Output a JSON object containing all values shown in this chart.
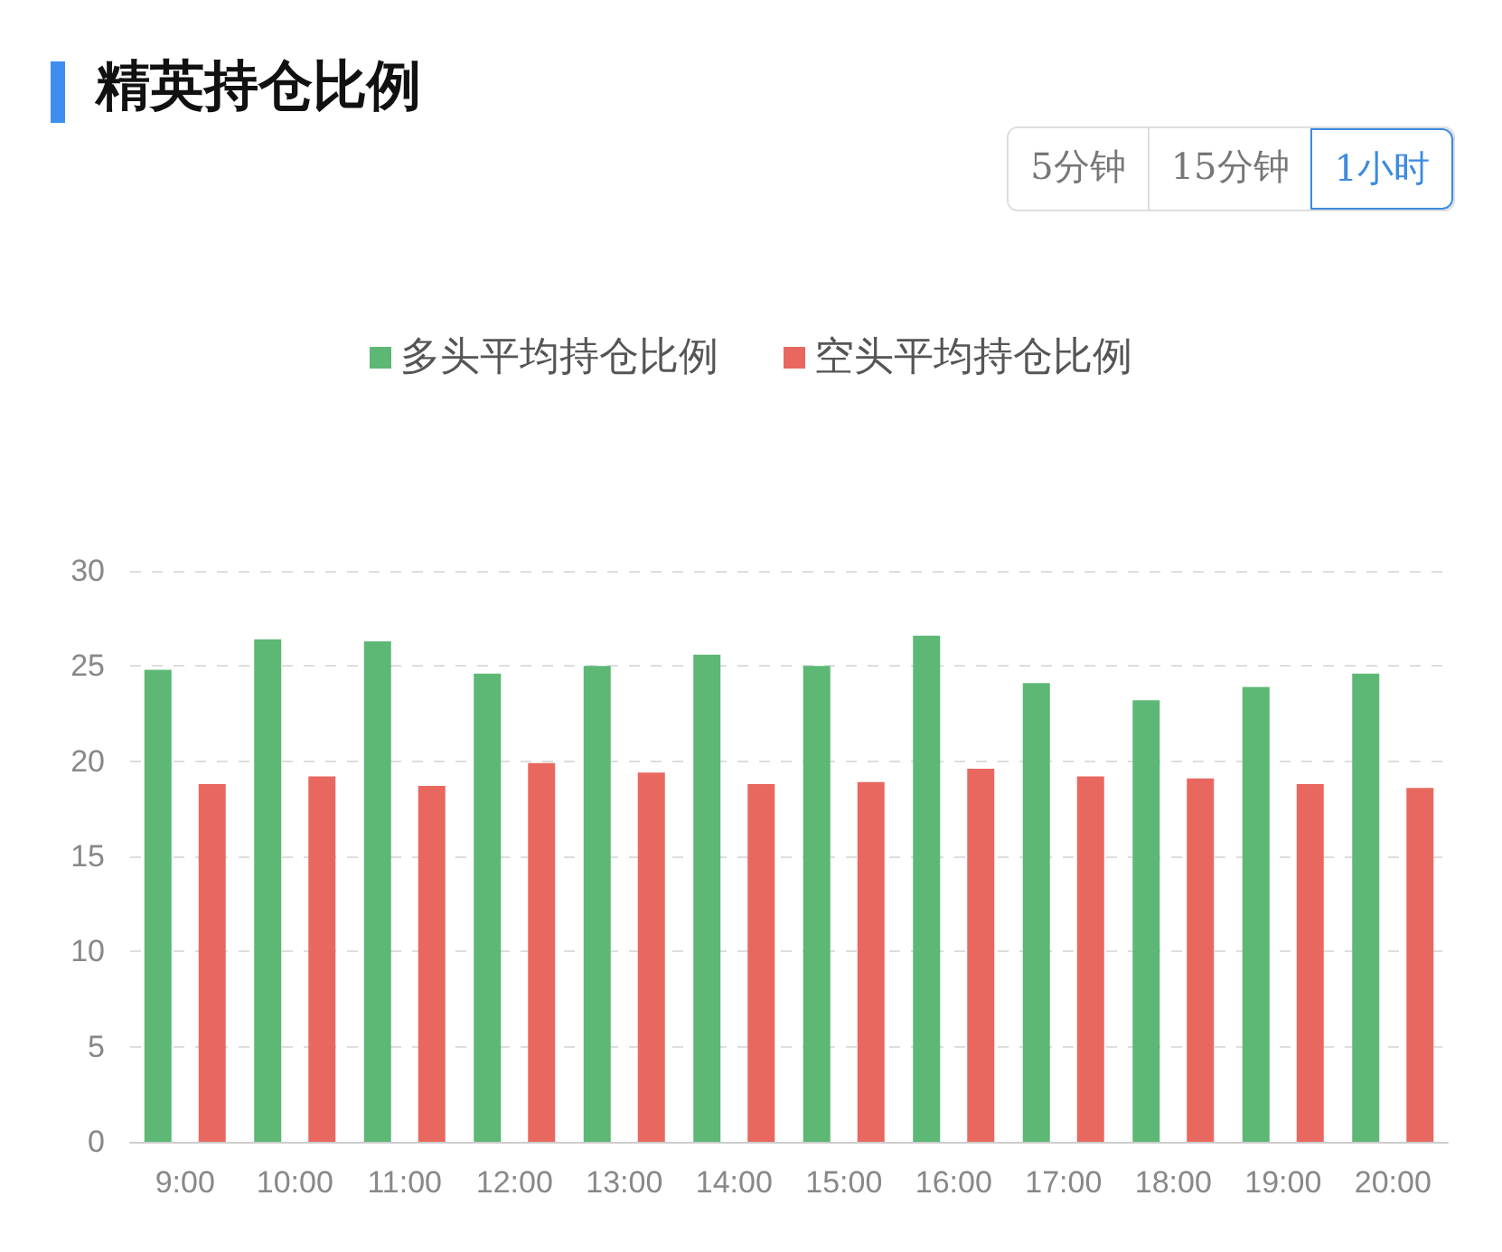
{
  "chart_data": {
    "type": "bar",
    "title": "精英持仓比例",
    "annotations": [
      "5分钟",
      "15分钟",
      "1小时"
    ],
    "categories": [
      "9:00",
      "10:00",
      "11:00",
      "12:00",
      "13:00",
      "14:00",
      "15:00",
      "16:00",
      "17:00",
      "18:00",
      "19:00",
      "20:00"
    ],
    "series": [
      {
        "name": "多头平均持仓比例",
        "color": "#5cb874",
        "values": [
          24.8,
          26.4,
          26.3,
          24.6,
          25.0,
          25.6,
          25.0,
          26.6,
          24.1,
          23.2,
          23.9,
          24.6
        ]
      },
      {
        "name": "空头平均持仓比例",
        "color": "#e8685f",
        "values": [
          18.8,
          19.2,
          18.7,
          19.9,
          19.4,
          18.8,
          18.9,
          19.6,
          19.2,
          19.1,
          18.8,
          18.6
        ]
      }
    ],
    "ylim": [
      0,
      30
    ],
    "yticks": [
      0,
      5,
      10,
      15,
      20,
      25,
      30
    ],
    "grid": "y",
    "legend": "top"
  }
}
